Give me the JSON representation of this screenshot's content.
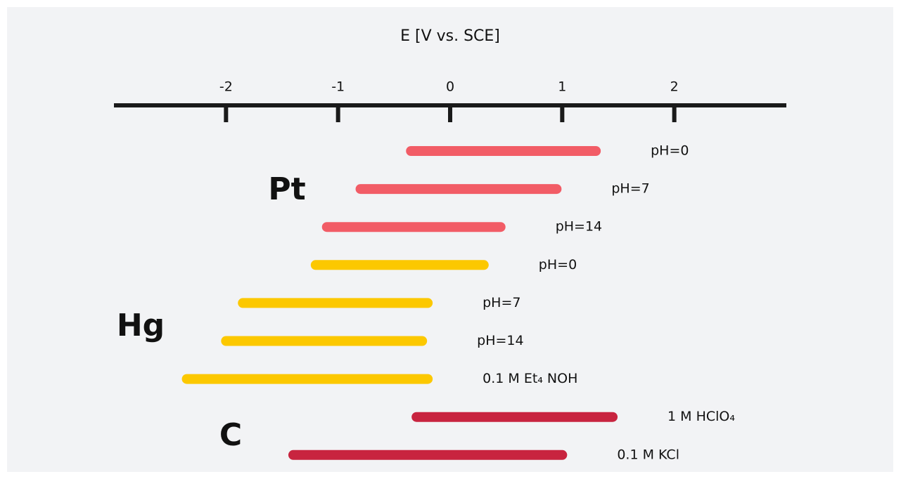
{
  "chart_data": {
    "type": "range-bar",
    "title": "E [V vs. SCE]",
    "xlim": [
      -3,
      3
    ],
    "xticks": [
      -2,
      -1,
      0,
      1,
      2
    ],
    "series": [
      {
        "name": "Pt",
        "color": "#f25c66",
        "bars": [
          {
            "label": "pH=0",
            "values": [
              -0.35,
              1.3
            ]
          },
          {
            "label": "pH=7",
            "values": [
              -0.8,
              0.95
            ]
          },
          {
            "label": "pH=14",
            "values": [
              -1.1,
              0.45
            ]
          }
        ]
      },
      {
        "name": "Hg",
        "color": "#fcc800",
        "bars": [
          {
            "label": "pH=0",
            "values": [
              -1.2,
              0.3
            ]
          },
          {
            "label": "pH=7",
            "values": [
              -1.85,
              -0.2
            ]
          },
          {
            "label": "pH=14",
            "values": [
              -2.0,
              -0.25
            ]
          },
          {
            "label": "0.1 M Et₄ NOH",
            "values": [
              -2.35,
              -0.2
            ]
          }
        ]
      },
      {
        "name": "C",
        "color": "#c8243f",
        "bars": [
          {
            "label": "1 M HClO₄",
            "values": [
              -0.3,
              1.45
            ]
          },
          {
            "label": "0.1 M KCl",
            "values": [
              -1.4,
              1.0
            ]
          }
        ]
      }
    ]
  }
}
